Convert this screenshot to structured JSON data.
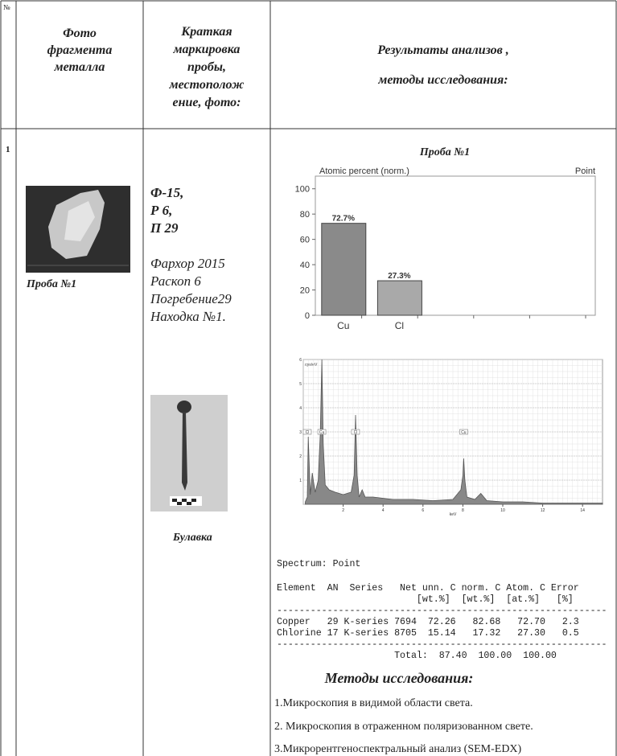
{
  "header": {
    "num": "№",
    "photo": [
      "Фото",
      "фрагмента",
      "металла"
    ],
    "marking": [
      "Краткая",
      "маркировка",
      "пробы,",
      "местополож",
      "ение, фото:"
    ],
    "results": [
      "Результаты анализов ,",
      "методы исследования:"
    ]
  },
  "row": {
    "num": "1",
    "photo_caption": "Проба №1",
    "code": [
      "Ф-15,",
      "Р 6,",
      "П 29"
    ],
    "location": [
      "Фархор 2015",
      "Раскоп 6",
      "Погребение29",
      "Находка №1."
    ],
    "item_caption": "Булавка"
  },
  "chart_data": [
    {
      "type": "bar",
      "title": "Проба №1",
      "subtitle": "Atomic percent (norm.)",
      "corner_label": "Point",
      "categories": [
        "Cu",
        "Cl",
        null,
        null,
        null
      ],
      "values": [
        72.7,
        27.3,
        null,
        null,
        null
      ],
      "value_labels": [
        "72.7%",
        "27.3%",
        null,
        null,
        null
      ],
      "colors": [
        "#8a8a8a",
        "#a9a9a9",
        null,
        null,
        null
      ],
      "ylim": [
        0,
        110
      ],
      "yticks": [
        0,
        20,
        40,
        60,
        80,
        100
      ]
    },
    {
      "type": "line",
      "y_label": "cps/eV",
      "x_label": "keV",
      "color": "#555555",
      "x": [
        0.1,
        0.2,
        0.25,
        0.35,
        0.45,
        0.52,
        0.6,
        0.75,
        0.85,
        0.93,
        1.0,
        1.1,
        1.3,
        1.6,
        2.0,
        2.4,
        2.55,
        2.62,
        2.7,
        2.8,
        2.95,
        3.1,
        3.5,
        4.5,
        5.5,
        6.5,
        7.5,
        7.9,
        8.0,
        8.04,
        8.1,
        8.2,
        8.6,
        8.9,
        9.2,
        10,
        11,
        12,
        13,
        14,
        15
      ],
      "values": [
        0.1,
        0.3,
        2.8,
        0.4,
        1.3,
        0.9,
        0.5,
        1.0,
        2.9,
        6.0,
        2.5,
        0.8,
        0.6,
        0.5,
        0.4,
        0.5,
        1.2,
        3.7,
        1.2,
        0.3,
        0.6,
        0.3,
        0.3,
        0.2,
        0.2,
        0.15,
        0.2,
        0.6,
        1.2,
        1.9,
        1.0,
        0.3,
        0.2,
        0.45,
        0.15,
        0.1,
        0.1,
        0.05,
        0.05,
        0.05,
        0.05
      ],
      "annotations": [
        {
          "label": "Cl",
          "x": 0.2,
          "y": 3
        },
        {
          "label": "Cu",
          "x": 0.93,
          "y": 3
        },
        {
          "label": "Cl",
          "x": 2.62,
          "y": 3
        },
        {
          "label": "Cu",
          "x": 8.04,
          "y": 3
        }
      ],
      "xlim": [
        0,
        15
      ],
      "ylim": [
        0,
        6
      ],
      "xticks": [
        2,
        4,
        6,
        8,
        10,
        12,
        14
      ],
      "yticks": [
        1,
        2,
        3,
        4,
        5,
        6
      ]
    }
  ],
  "edx": {
    "title": "Spectrum: Point",
    "lines": [
      "Element  AN  Series   Net unn. C norm. C Atom. C Error",
      "                         [wt.%]  [wt.%]  [at.%]   [%]",
      "-----------------------------------------------------------",
      "Copper   29 K-series 7694  72.26   82.68   72.70   2.3",
      "Chlorine 17 K-series 8705  15.14   17.32   27.30   0.5",
      "-----------------------------------------------------------",
      "                     Total:  87.40  100.00  100.00"
    ]
  },
  "methods": {
    "title": "Методы исследования:",
    "items": [
      "1.Микроскопия в видимой области света.",
      "2. Микроскопия в отраженном  поляризованном свете.",
      "3.Микрорентгеноспектральный анализ (SEM-EDX)"
    ]
  }
}
